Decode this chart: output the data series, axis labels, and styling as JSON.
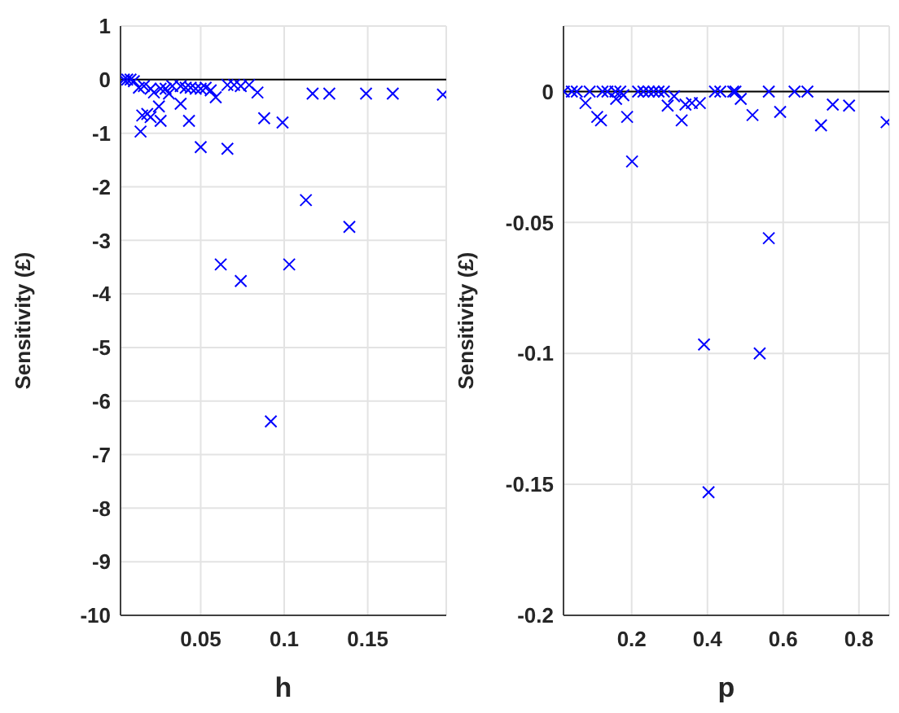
{
  "chart_data": [
    {
      "type": "scatter",
      "xlabel": "h",
      "ylabel": "Sensitivity (£)",
      "marker": "cross",
      "grid": true,
      "xlim": [
        0.002,
        0.197
      ],
      "ylim": [
        -10,
        1
      ],
      "xticks": [
        0.05,
        0.1,
        0.15
      ],
      "yticks": [
        1,
        0,
        -1,
        -2,
        -3,
        -4,
        -5,
        -6,
        -7,
        -8,
        -9,
        -10
      ],
      "ref_lines": [
        {
          "axis": "y",
          "value": 0,
          "color": "#000000"
        }
      ],
      "series": [
        {
          "color": "#0000ff",
          "x": [
            0.004,
            0.006,
            0.008,
            0.01,
            0.013,
            0.016,
            0.02,
            0.022,
            0.026,
            0.029,
            0.031,
            0.033,
            0.035,
            0.038,
            0.041,
            0.044,
            0.047,
            0.05,
            0.053,
            0.056,
            0.066,
            0.07,
            0.074,
            0.079,
            0.014,
            0.015,
            0.018,
            0.02,
            0.025,
            0.026,
            0.038,
            0.043,
            0.05,
            0.066,
            0.088,
            0.099,
            0.084,
            0.059,
            0.117,
            0.127,
            0.149,
            0.165,
            0.195,
            0.062,
            0.074,
            0.092,
            0.103,
            0.113,
            0.139
          ],
          "values": [
            0,
            0,
            0,
            -0.03,
            -0.15,
            -0.12,
            -0.17,
            -0.24,
            -0.17,
            -0.17,
            -0.26,
            -0.12,
            null,
            -0.12,
            -0.15,
            -0.15,
            -0.17,
            -0.17,
            -0.15,
            -0.2,
            -0.1,
            -0.1,
            -0.12,
            -0.1,
            -0.97,
            -0.67,
            -0.64,
            -0.7,
            -0.5,
            -0.77,
            -0.45,
            -0.77,
            -1.26,
            -1.29,
            -0.72,
            -0.8,
            -0.24,
            -0.33,
            -0.26,
            -0.26,
            -0.26,
            -0.26,
            -0.28,
            -3.45,
            -3.76,
            -6.38,
            -3.45,
            -2.25,
            -2.75
          ]
        }
      ]
    },
    {
      "type": "scatter",
      "xlabel": "p",
      "ylabel": "Sensitivity (£)",
      "marker": "cross",
      "grid": true,
      "xlim": [
        0.02,
        0.88
      ],
      "ylim": [
        -0.2,
        0.025
      ],
      "xticks": [
        0.2,
        0.4,
        0.6,
        0.8
      ],
      "yticks": [
        0,
        -0.05,
        -0.1,
        -0.15,
        -0.2
      ],
      "ref_lines": [
        {
          "axis": "y",
          "value": 0,
          "color": "#000000"
        }
      ],
      "series": [
        {
          "color": "#0000ff",
          "x": [
            0.021,
            0.042,
            0.055,
            0.089,
            0.123,
            0.136,
            0.157,
            0.17,
            0.217,
            0.231,
            0.245,
            0.258,
            0.271,
            0.285,
            0.42,
            0.434,
            0.468,
            0.474,
            0.562,
            0.63,
            0.664,
            0.078,
            0.109,
            0.119,
            0.159,
            0.178,
            0.188,
            0.201,
            0.295,
            0.312,
            0.332,
            0.342,
            0.359,
            0.38,
            0.488,
            0.519,
            0.592,
            0.7,
            0.731,
            0.774,
            0.873,
            0.562,
            0.391,
            0.538,
            0.403
          ],
          "values": [
            0,
            0,
            0,
            0,
            0,
            0,
            0,
            0,
            0,
            0,
            0,
            0,
            0,
            0,
            0,
            0,
            0,
            0,
            0,
            0,
            0,
            -0.0044,
            -0.0097,
            -0.011,
            -0.0028,
            -0.0014,
            -0.0097,
            -0.0267,
            -0.0054,
            -0.0018,
            -0.011,
            -0.005,
            -0.0044,
            -0.0044,
            -0.0028,
            -0.009,
            -0.0078,
            -0.0129,
            -0.005,
            -0.0054,
            -0.0117,
            -0.056,
            -0.0966,
            -0.1,
            -0.153
          ]
        }
      ]
    }
  ]
}
